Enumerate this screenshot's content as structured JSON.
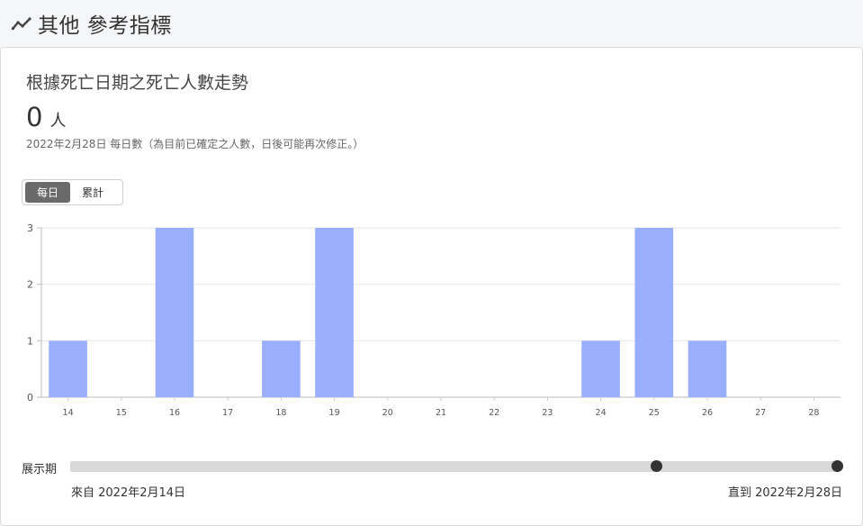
{
  "header": {
    "title": "其他 參考指標",
    "icon": "trending-line-icon"
  },
  "card": {
    "title": "根據死亡日期之死亡人數走勢",
    "value": "0",
    "unit": "人",
    "note": "2022年2月28日 每日數（為目前已確定之人數，日後可能再次修正。）"
  },
  "toggle": {
    "daily_label": "每日",
    "cumulative_label": "累計",
    "selected": "daily"
  },
  "range": {
    "label": "展示期",
    "from_label": "來自 2022年2月14日",
    "to_label": "直到 2022年2月28日",
    "start_fraction": 0.762,
    "end_fraction": 1.0
  },
  "chart_data": {
    "type": "bar",
    "categories": [
      "14",
      "15",
      "16",
      "17",
      "18",
      "19",
      "20",
      "21",
      "22",
      "23",
      "24",
      "25",
      "26",
      "27",
      "28"
    ],
    "values": [
      1,
      0,
      3,
      0,
      1,
      3,
      0,
      0,
      0,
      0,
      1,
      3,
      1,
      0,
      0
    ],
    "yticks": [
      0,
      1,
      2,
      3
    ],
    "ylim": [
      0,
      3
    ],
    "grid": true,
    "bar_color": "#9aaefe"
  }
}
